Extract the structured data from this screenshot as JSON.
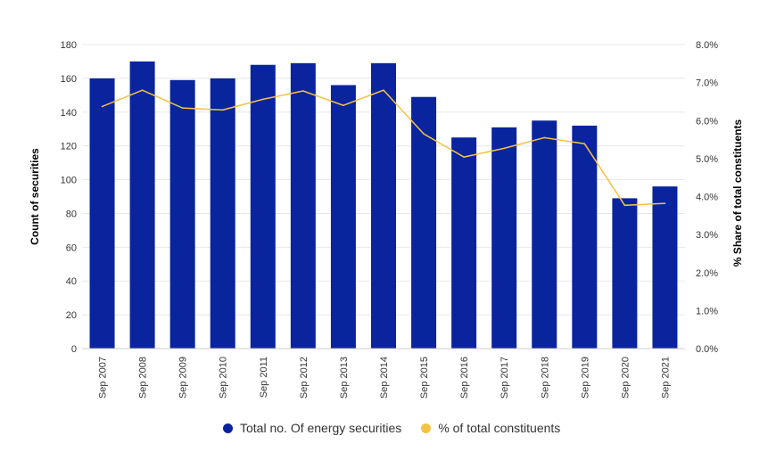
{
  "chart_data": {
    "type": "bar",
    "title": "",
    "categories": [
      "Sep 2007",
      "Sep 2008",
      "Sep 2009",
      "Sep 2010",
      "Sep 2011",
      "Sep 2012",
      "Sep 2013",
      "Sep 2014",
      "Sep 2015",
      "Sep 2016",
      "Sep 2017",
      "Sep 2018",
      "Sep 2019",
      "Sep 2020",
      "Sep 2021"
    ],
    "series": [
      {
        "name": "Total no. Of energy securities",
        "type": "bar",
        "axis": "left",
        "color": "#0A249E",
        "values": [
          160,
          170,
          159,
          160,
          168,
          169,
          156,
          169,
          149,
          125,
          131,
          135,
          132,
          89,
          96
        ]
      },
      {
        "name": "% of total constituents",
        "type": "line",
        "axis": "right",
        "color": "#F5C342",
        "values": [
          6.37,
          6.8,
          6.33,
          6.28,
          6.56,
          6.78,
          6.4,
          6.8,
          5.65,
          5.04,
          5.27,
          5.55,
          5.39,
          3.77,
          3.82
        ]
      }
    ],
    "ylabel": "Count of securities",
    "y2label": "% Share of total constituents",
    "ylim": [
      0,
      180
    ],
    "y2lim": [
      0,
      8
    ],
    "yticks": [
      "0",
      "20",
      "40",
      "60",
      "80",
      "100",
      "120",
      "140",
      "160",
      "180"
    ],
    "y2ticks": [
      "0.0%",
      "1.0%",
      "2.0%",
      "3.0%",
      "4.0%",
      "5.0%",
      "6.0%",
      "7.0%",
      "8.0%"
    ],
    "grid": true,
    "legend": "bottom-center"
  },
  "legend": {
    "items": [
      {
        "label": "Total no. Of energy securities",
        "color": "#0A249E"
      },
      {
        "label": "% of total constituents",
        "color": "#F5C342"
      }
    ]
  }
}
